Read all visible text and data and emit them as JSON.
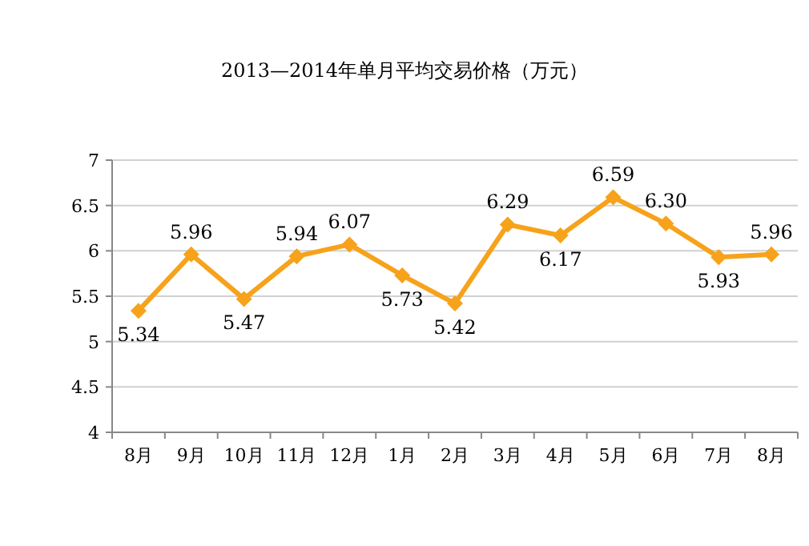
{
  "chart_data": {
    "type": "line",
    "title": "2013—2014年单月平均交易价格（万元）",
    "categories": [
      "8月",
      "9月",
      "10月",
      "11月",
      "12月",
      "1月",
      "2月",
      "3月",
      "4月",
      "5月",
      "6月",
      "7月",
      "8月"
    ],
    "series": [
      {
        "color": "#f7a21b",
        "values": [
          5.34,
          5.96,
          5.47,
          5.94,
          6.07,
          5.73,
          5.42,
          6.29,
          6.17,
          6.59,
          6.3,
          5.93,
          5.96
        ],
        "value_labels": [
          "5.34",
          "5.96",
          "5.47",
          "5.94",
          "6.07",
          "5.73",
          "5.42",
          "6.29",
          "6.17",
          "6.59",
          "6.30",
          "5.93",
          "5.96"
        ]
      }
    ],
    "ylim": [
      4,
      7
    ],
    "yticks": [
      4,
      4.5,
      5,
      5.5,
      6,
      6.5,
      7
    ],
    "grid": "y",
    "marker": "diamond",
    "line_style": "solid"
  }
}
